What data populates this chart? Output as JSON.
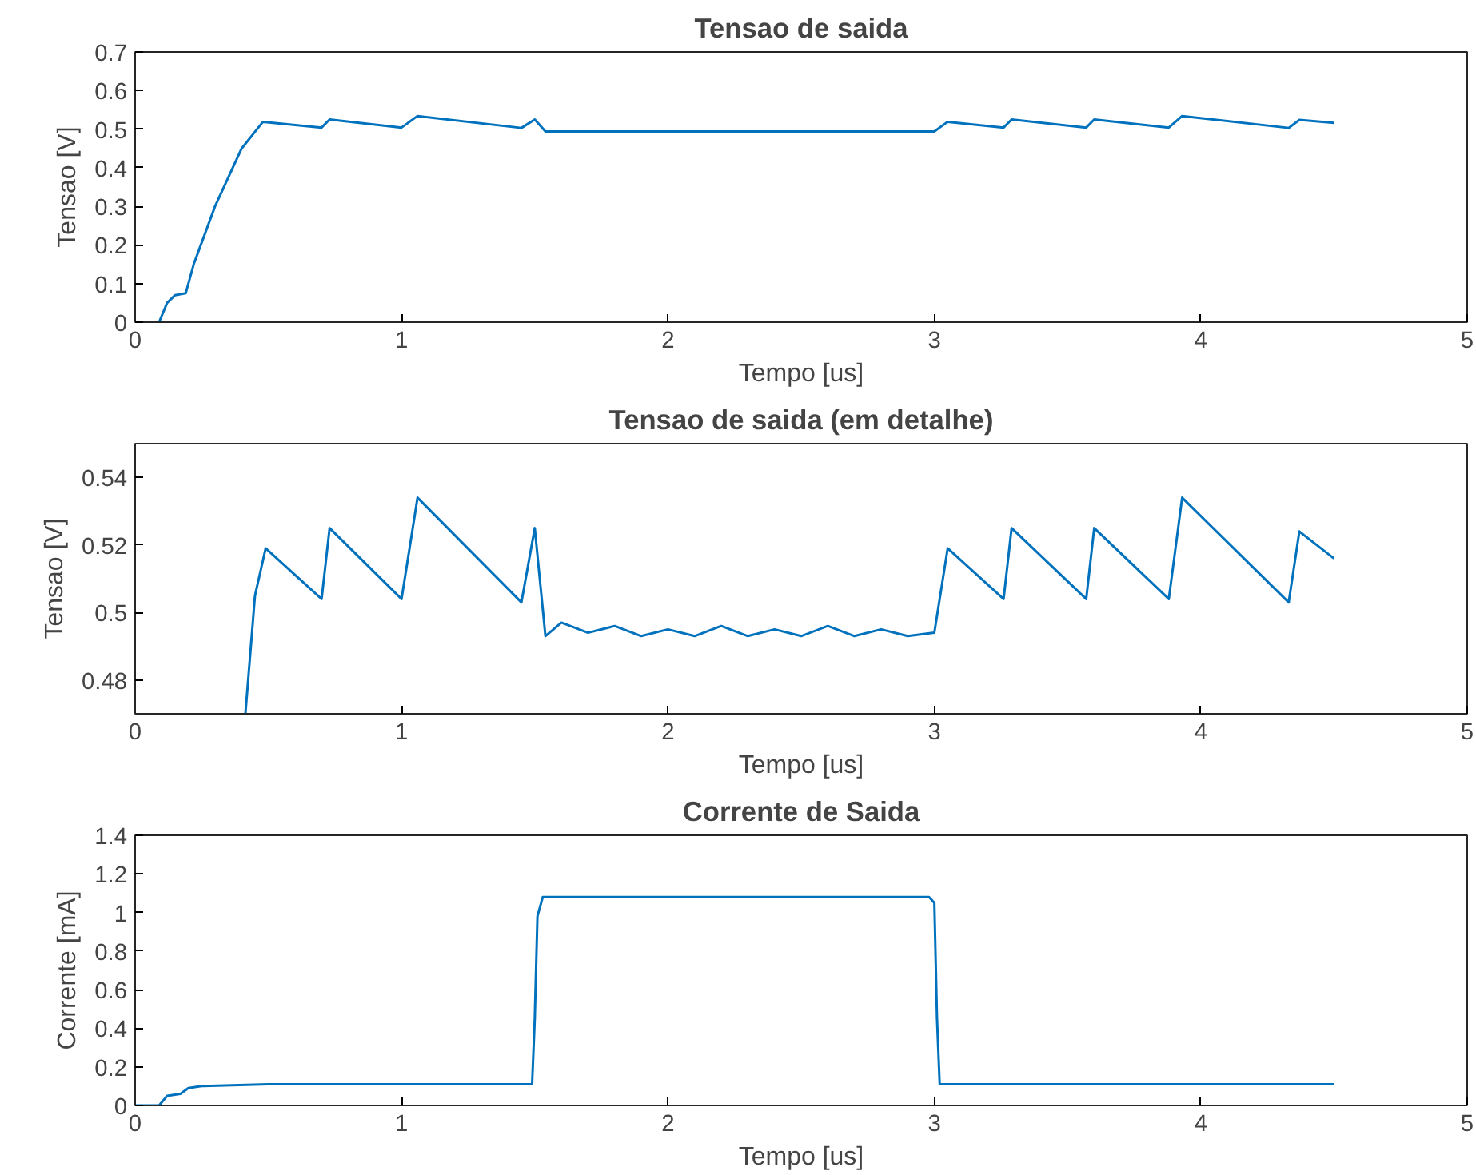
{
  "chart_data": [
    {
      "type": "line",
      "title": "Tensao de saida",
      "xlabel": "Tempo [us]",
      "ylabel": "Tensao [V]",
      "xlim": [
        0,
        5
      ],
      "ylim": [
        0,
        0.7
      ],
      "xticks": [
        0,
        1,
        2,
        3,
        4,
        5
      ],
      "yticks": [
        0,
        0.1,
        0.2,
        0.3,
        0.4,
        0.5,
        0.6,
        0.7
      ],
      "grid": false,
      "color": "#0072bd",
      "x": [
        0,
        0.09,
        0.12,
        0.15,
        0.19,
        0.22,
        0.3,
        0.4,
        0.48,
        0.7,
        0.73,
        1.0,
        1.06,
        1.45,
        1.5,
        1.54,
        2.0,
        2.5,
        3.0,
        3.05,
        3.26,
        3.29,
        3.57,
        3.6,
        3.88,
        3.93,
        4.33,
        4.37,
        4.5
      ],
      "values": [
        0,
        0,
        0.05,
        0.07,
        0.075,
        0.15,
        0.3,
        0.45,
        0.519,
        0.504,
        0.525,
        0.504,
        0.534,
        0.503,
        0.525,
        0.494,
        0.494,
        0.494,
        0.494,
        0.519,
        0.504,
        0.525,
        0.504,
        0.525,
        0.504,
        0.534,
        0.503,
        0.524,
        0.516
      ]
    },
    {
      "type": "line",
      "title": "Tensao de saida (em detalhe)",
      "xlabel": "Tempo [us]",
      "ylabel": "Tensao [V]",
      "xlim": [
        0,
        5
      ],
      "ylim": [
        0.47,
        0.55
      ],
      "xticks": [
        0,
        1,
        2,
        3,
        4,
        5
      ],
      "yticks": [
        0.48,
        0.5,
        0.52,
        0.54
      ],
      "grid": false,
      "color": "#0072bd",
      "x": [
        0.414,
        0.45,
        0.49,
        0.7,
        0.73,
        1.0,
        1.06,
        1.45,
        1.5,
        1.54,
        1.6,
        1.7,
        1.8,
        1.9,
        2.0,
        2.1,
        2.2,
        2.3,
        2.4,
        2.5,
        2.6,
        2.7,
        2.8,
        2.9,
        3.0,
        3.05,
        3.26,
        3.29,
        3.57,
        3.6,
        3.88,
        3.93,
        4.33,
        4.37,
        4.5
      ],
      "values": [
        0.47,
        0.505,
        0.519,
        0.504,
        0.525,
        0.504,
        0.534,
        0.503,
        0.525,
        0.493,
        0.497,
        0.494,
        0.496,
        0.493,
        0.495,
        0.493,
        0.496,
        0.493,
        0.495,
        0.493,
        0.496,
        0.493,
        0.495,
        0.493,
        0.494,
        0.519,
        0.504,
        0.525,
        0.504,
        0.525,
        0.504,
        0.534,
        0.503,
        0.524,
        0.516
      ]
    },
    {
      "type": "line",
      "title": "Corrente de Saida",
      "xlabel": "Tempo [us]",
      "ylabel": "Corrente [mA]",
      "xlim": [
        0,
        5
      ],
      "ylim": [
        0,
        1.4
      ],
      "xticks": [
        0,
        1,
        2,
        3,
        4,
        5
      ],
      "yticks": [
        0,
        0.2,
        0.4,
        0.6,
        0.8,
        1,
        1.2,
        1.4
      ],
      "grid": false,
      "color": "#0072bd",
      "x": [
        0,
        0.09,
        0.12,
        0.17,
        0.2,
        0.25,
        0.5,
        1.49,
        1.5,
        1.51,
        1.53,
        2.98,
        3.0,
        3.01,
        3.02,
        4.5
      ],
      "values": [
        0,
        0,
        0.05,
        0.06,
        0.09,
        0.1,
        0.11,
        0.11,
        0.45,
        0.98,
        1.08,
        1.08,
        1.05,
        0.45,
        0.11,
        0.11
      ]
    }
  ]
}
